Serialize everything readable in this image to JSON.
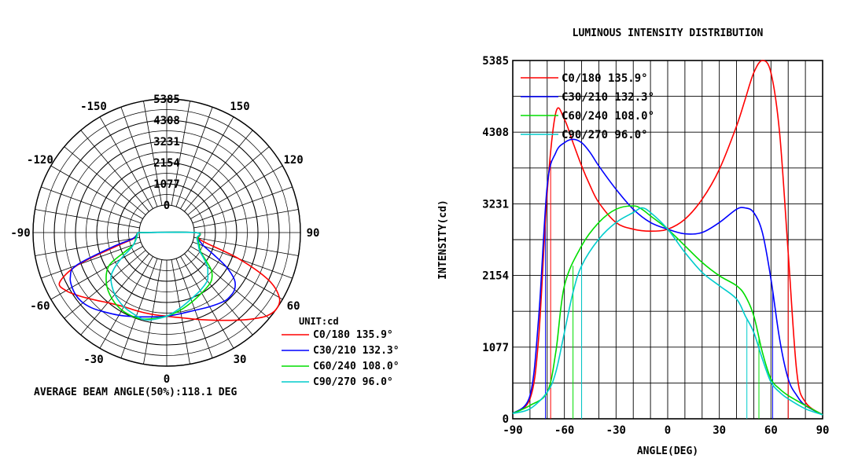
{
  "chart_data": [
    {
      "type": "polar-line",
      "unit_label": "UNIT:cd",
      "footer_text": "AVERAGE BEAM ANGLE(50%):118.1 DEG",
      "radial_max": 5385,
      "radial_ticks": [
        "5385",
        "4308",
        "3231",
        "2154",
        "1077",
        "0"
      ],
      "angle_labels": [
        "0",
        "30",
        "60",
        "90",
        "120",
        "150",
        "-150",
        "-120",
        "-90",
        "-60",
        "-30"
      ],
      "angle_values": [
        0,
        30,
        60,
        90,
        120,
        150,
        -150,
        -120,
        -90,
        -60,
        -30
      ],
      "series": [
        {
          "name": "C0/180 135.9°",
          "color": "#ff0000",
          "angles": [
            -90,
            -80,
            -75,
            -70,
            -65,
            -60,
            -55,
            -50,
            -45,
            -40,
            -30,
            -20,
            -10,
            0,
            10,
            20,
            30,
            40,
            45,
            50,
            55,
            60,
            65,
            70,
            75,
            80,
            90
          ],
          "values": [
            80,
            300,
            1200,
            3400,
            4600,
            4500,
            4150,
            3800,
            3500,
            3250,
            2950,
            2850,
            2820,
            2850,
            3000,
            3300,
            3750,
            4400,
            4800,
            5200,
            5385,
            5200,
            4300,
            2500,
            700,
            250,
            60
          ]
        },
        {
          "name": "C30/210 132.3°",
          "color": "#0000ff",
          "angles": [
            -90,
            -80,
            -75,
            -70,
            -65,
            -60,
            -55,
            -50,
            -45,
            -40,
            -30,
            -20,
            -10,
            0,
            10,
            20,
            30,
            40,
            45,
            50,
            55,
            60,
            65,
            70,
            75,
            80,
            90
          ],
          "values": [
            80,
            350,
            1500,
            3500,
            4000,
            4150,
            4200,
            4150,
            4000,
            3800,
            3450,
            3150,
            2950,
            2850,
            2780,
            2800,
            2950,
            3150,
            3170,
            3100,
            2800,
            2100,
            1200,
            600,
            350,
            200,
            60
          ]
        },
        {
          "name": "C60/240 108.0°",
          "color": "#00dd00",
          "angles": [
            -90,
            -80,
            -70,
            -65,
            -60,
            -50,
            -40,
            -30,
            -20,
            -15,
            -10,
            0,
            10,
            20,
            30,
            40,
            45,
            50,
            55,
            60,
            65,
            70,
            80,
            90
          ],
          "values": [
            80,
            200,
            400,
            1000,
            2000,
            2600,
            2950,
            3150,
            3200,
            3150,
            3050,
            2850,
            2600,
            2350,
            2150,
            2000,
            1850,
            1550,
            1000,
            600,
            450,
            350,
            200,
            60
          ]
        },
        {
          "name": "C90/270 96.0°",
          "color": "#00cccc",
          "angles": [
            -90,
            -80,
            -70,
            -65,
            -60,
            -55,
            -50,
            -40,
            -30,
            -20,
            -15,
            -10,
            0,
            10,
            20,
            30,
            40,
            45,
            50,
            55,
            60,
            65,
            70,
            80,
            90
          ],
          "values": [
            80,
            150,
            400,
            700,
            1300,
            1900,
            2300,
            2700,
            2950,
            3100,
            3170,
            3100,
            2850,
            2500,
            2200,
            2000,
            1800,
            1550,
            1300,
            900,
            550,
            400,
            300,
            150,
            60
          ]
        }
      ]
    },
    {
      "type": "line",
      "title": "LUMINOUS INTENSITY DISTRIBUTION",
      "xlabel": "ANGLE(DEG)",
      "ylabel": "INTENSITY(cd)",
      "xlim": [
        -90,
        90
      ],
      "ylim": [
        0,
        5385
      ],
      "x_ticks": [
        -90,
        -60,
        -30,
        0,
        30,
        60,
        90
      ],
      "x_tick_labels": [
        "-90",
        "-60",
        "-30",
        "0",
        "30",
        "60",
        "90"
      ],
      "y_ticks": [
        0,
        1077,
        2154,
        3231,
        4308,
        5385
      ],
      "y_tick_labels": [
        "0",
        "1077",
        "2154",
        "3231",
        "4308",
        "5385"
      ],
      "grid": true,
      "legend_position": "top-left",
      "series": [
        {
          "name": "C0/180 135.9°",
          "color": "#ff0000",
          "x": [
            -90,
            -80,
            -75,
            -70,
            -65,
            -60,
            -55,
            -50,
            -45,
            -40,
            -30,
            -20,
            -10,
            0,
            10,
            20,
            30,
            40,
            45,
            50,
            55,
            60,
            65,
            70,
            75,
            80,
            90
          ],
          "y": [
            80,
            300,
            1200,
            3400,
            4600,
            4500,
            4150,
            3800,
            3500,
            3250,
            2950,
            2850,
            2820,
            2850,
            3000,
            3300,
            3750,
            4400,
            4800,
            5200,
            5385,
            5200,
            4300,
            2500,
            700,
            250,
            60
          ]
        },
        {
          "name": "C30/210 132.3°",
          "color": "#0000ff",
          "x": [
            -90,
            -80,
            -75,
            -70,
            -65,
            -60,
            -55,
            -50,
            -45,
            -40,
            -30,
            -20,
            -10,
            0,
            10,
            20,
            30,
            40,
            45,
            50,
            55,
            60,
            65,
            70,
            75,
            80,
            90
          ],
          "y": [
            80,
            350,
            1500,
            3500,
            4000,
            4150,
            4200,
            4150,
            4000,
            3800,
            3450,
            3150,
            2950,
            2850,
            2780,
            2800,
            2950,
            3150,
            3170,
            3100,
            2800,
            2100,
            1200,
            600,
            350,
            200,
            60
          ]
        },
        {
          "name": "C60/240 108.0°",
          "color": "#00dd00",
          "x": [
            -90,
            -80,
            -70,
            -65,
            -60,
            -50,
            -40,
            -30,
            -20,
            -15,
            -10,
            0,
            10,
            20,
            30,
            40,
            45,
            50,
            55,
            60,
            65,
            70,
            80,
            90
          ],
          "y": [
            80,
            200,
            400,
            1000,
            2000,
            2600,
            2950,
            3150,
            3200,
            3150,
            3050,
            2850,
            2600,
            2350,
            2150,
            2000,
            1850,
            1550,
            1000,
            600,
            450,
            350,
            200,
            60
          ]
        },
        {
          "name": "C90/270 96.0°",
          "color": "#00cccc",
          "x": [
            -90,
            -80,
            -70,
            -65,
            -60,
            -55,
            -50,
            -40,
            -30,
            -20,
            -15,
            -10,
            0,
            10,
            20,
            30,
            40,
            45,
            50,
            55,
            60,
            65,
            70,
            80,
            90
          ],
          "y": [
            80,
            150,
            400,
            700,
            1300,
            1900,
            2300,
            2700,
            2950,
            3100,
            3170,
            3100,
            2850,
            2500,
            2200,
            2000,
            1800,
            1550,
            1300,
            900,
            550,
            400,
            300,
            150,
            60
          ]
        }
      ],
      "beam_markers": [
        {
          "color": "#ff0000",
          "x": [
            -68,
            70
          ]
        },
        {
          "color": "#0000ff",
          "x": [
            -71,
            61
          ]
        },
        {
          "color": "#00dd00",
          "x": [
            -55,
            53
          ]
        },
        {
          "color": "#00cccc",
          "x": [
            -50,
            46
          ]
        }
      ]
    }
  ]
}
